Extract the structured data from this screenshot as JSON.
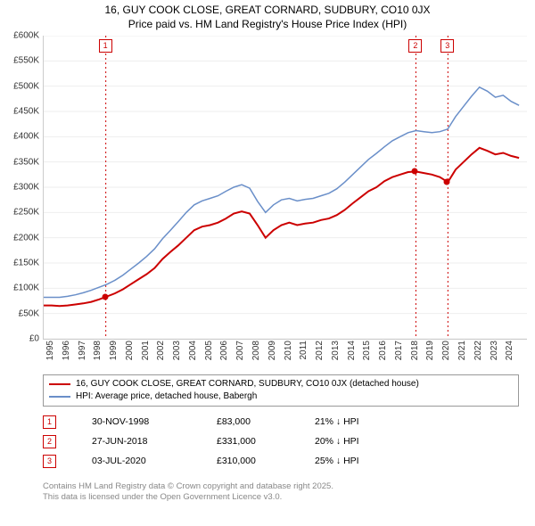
{
  "title_line1": "16, GUY COOK CLOSE, GREAT CORNARD, SUDBURY, CO10 0JX",
  "title_line2": "Price paid vs. HM Land Registry's House Price Index (HPI)",
  "chart": {
    "type": "line",
    "background_color": "#ffffff",
    "grid_color": "#eeeeee",
    "axis_color": "#cccccc",
    "xlim": [
      1995,
      2025.5
    ],
    "ylim": [
      0,
      600000
    ],
    "yticks": [
      0,
      50000,
      100000,
      150000,
      200000,
      250000,
      300000,
      350000,
      400000,
      450000,
      500000,
      550000,
      600000
    ],
    "ytick_labels": [
      "£0",
      "£50K",
      "£100K",
      "£150K",
      "£200K",
      "£250K",
      "£300K",
      "£350K",
      "£400K",
      "£450K",
      "£500K",
      "£550K",
      "£600K"
    ],
    "xticks": [
      1995,
      1996,
      1997,
      1998,
      1999,
      2000,
      2001,
      2002,
      2003,
      2004,
      2005,
      2006,
      2007,
      2008,
      2009,
      2010,
      2011,
      2012,
      2013,
      2014,
      2015,
      2016,
      2017,
      2018,
      2019,
      2020,
      2021,
      2022,
      2023,
      2024
    ],
    "xtick_labels": [
      "1995",
      "1996",
      "1997",
      "1998",
      "1999",
      "2000",
      "2001",
      "2002",
      "2003",
      "2004",
      "2005",
      "2006",
      "2007",
      "2008",
      "2009",
      "2010",
      "2011",
      "2012",
      "2013",
      "2014",
      "2015",
      "2016",
      "2017",
      "2018",
      "2019",
      "2020",
      "2021",
      "2022",
      "2023",
      "2024"
    ],
    "label_fontsize": 10,
    "series": [
      {
        "name": "property",
        "color": "#cc0000",
        "line_width": 2,
        "data": [
          [
            1995,
            66000
          ],
          [
            1995.5,
            66000
          ],
          [
            1996,
            65000
          ],
          [
            1996.5,
            66000
          ],
          [
            1997,
            68000
          ],
          [
            1997.5,
            70000
          ],
          [
            1998,
            73000
          ],
          [
            1998.5,
            78000
          ],
          [
            1998.92,
            83000
          ],
          [
            1999.5,
            90000
          ],
          [
            2000,
            98000
          ],
          [
            2000.5,
            108000
          ],
          [
            2001,
            118000
          ],
          [
            2001.5,
            128000
          ],
          [
            2002,
            140000
          ],
          [
            2002.5,
            158000
          ],
          [
            2003,
            172000
          ],
          [
            2003.5,
            185000
          ],
          [
            2004,
            200000
          ],
          [
            2004.5,
            215000
          ],
          [
            2005,
            222000
          ],
          [
            2005.5,
            225000
          ],
          [
            2006,
            230000
          ],
          [
            2006.5,
            238000
          ],
          [
            2007,
            248000
          ],
          [
            2007.5,
            252000
          ],
          [
            2008,
            248000
          ],
          [
            2008.5,
            225000
          ],
          [
            2009,
            200000
          ],
          [
            2009.5,
            215000
          ],
          [
            2010,
            225000
          ],
          [
            2010.5,
            230000
          ],
          [
            2011,
            225000
          ],
          [
            2011.5,
            228000
          ],
          [
            2012,
            230000
          ],
          [
            2012.5,
            235000
          ],
          [
            2013,
            238000
          ],
          [
            2013.5,
            245000
          ],
          [
            2014,
            255000
          ],
          [
            2014.5,
            268000
          ],
          [
            2015,
            280000
          ],
          [
            2015.5,
            292000
          ],
          [
            2016,
            300000
          ],
          [
            2016.5,
            312000
          ],
          [
            2017,
            320000
          ],
          [
            2017.5,
            325000
          ],
          [
            2018,
            330000
          ],
          [
            2018.49,
            331000
          ],
          [
            2019,
            328000
          ],
          [
            2019.5,
            325000
          ],
          [
            2020,
            320000
          ],
          [
            2020.51,
            310000
          ],
          [
            2021,
            335000
          ],
          [
            2021.5,
            350000
          ],
          [
            2022,
            365000
          ],
          [
            2022.5,
            378000
          ],
          [
            2023,
            372000
          ],
          [
            2023.5,
            365000
          ],
          [
            2024,
            368000
          ],
          [
            2024.5,
            362000
          ],
          [
            2025,
            358000
          ]
        ]
      },
      {
        "name": "hpi",
        "color": "#6a8fc9",
        "line_width": 1.5,
        "data": [
          [
            1995,
            82000
          ],
          [
            1995.5,
            82000
          ],
          [
            1996,
            82000
          ],
          [
            1996.5,
            84000
          ],
          [
            1997,
            87000
          ],
          [
            1997.5,
            91000
          ],
          [
            1998,
            96000
          ],
          [
            1998.5,
            102000
          ],
          [
            1999,
            108000
          ],
          [
            1999.5,
            116000
          ],
          [
            2000,
            126000
          ],
          [
            2000.5,
            138000
          ],
          [
            2001,
            150000
          ],
          [
            2001.5,
            163000
          ],
          [
            2002,
            178000
          ],
          [
            2002.5,
            198000
          ],
          [
            2003,
            215000
          ],
          [
            2003.5,
            232000
          ],
          [
            2004,
            250000
          ],
          [
            2004.5,
            265000
          ],
          [
            2005,
            273000
          ],
          [
            2005.5,
            278000
          ],
          [
            2006,
            283000
          ],
          [
            2006.5,
            292000
          ],
          [
            2007,
            300000
          ],
          [
            2007.5,
            305000
          ],
          [
            2008,
            298000
          ],
          [
            2008.5,
            272000
          ],
          [
            2009,
            250000
          ],
          [
            2009.5,
            265000
          ],
          [
            2010,
            275000
          ],
          [
            2010.5,
            278000
          ],
          [
            2011,
            273000
          ],
          [
            2011.5,
            276000
          ],
          [
            2012,
            278000
          ],
          [
            2012.5,
            283000
          ],
          [
            2013,
            288000
          ],
          [
            2013.5,
            297000
          ],
          [
            2014,
            310000
          ],
          [
            2014.5,
            325000
          ],
          [
            2015,
            340000
          ],
          [
            2015.5,
            355000
          ],
          [
            2016,
            367000
          ],
          [
            2016.5,
            380000
          ],
          [
            2017,
            392000
          ],
          [
            2017.5,
            400000
          ],
          [
            2018,
            408000
          ],
          [
            2018.5,
            412000
          ],
          [
            2019,
            410000
          ],
          [
            2019.5,
            408000
          ],
          [
            2020,
            410000
          ],
          [
            2020.5,
            415000
          ],
          [
            2021,
            440000
          ],
          [
            2021.5,
            460000
          ],
          [
            2022,
            480000
          ],
          [
            2022.5,
            498000
          ],
          [
            2023,
            490000
          ],
          [
            2023.5,
            478000
          ],
          [
            2024,
            482000
          ],
          [
            2024.5,
            470000
          ],
          [
            2025,
            462000
          ]
        ]
      }
    ],
    "markers": [
      {
        "x": 1998.92,
        "y": 83000,
        "color": "#cc0000"
      },
      {
        "x": 2018.49,
        "y": 331000,
        "color": "#cc0000"
      },
      {
        "x": 2020.51,
        "y": 310000,
        "color": "#cc0000"
      }
    ],
    "event_lines": [
      {
        "num": "1",
        "x": 1998.92,
        "line_color": "#cc0000"
      },
      {
        "num": "2",
        "x": 2018.49,
        "line_color": "#cc0000"
      },
      {
        "num": "3",
        "x": 2020.51,
        "line_color": "#cc0000"
      }
    ]
  },
  "legend": {
    "items": [
      {
        "color": "#cc0000",
        "label": "16, GUY COOK CLOSE, GREAT CORNARD, SUDBURY, CO10 0JX (detached house)"
      },
      {
        "color": "#6a8fc9",
        "label": "HPI: Average price, detached house, Babergh"
      }
    ]
  },
  "events": [
    {
      "num": "1",
      "date": "30-NOV-1998",
      "price": "£83,000",
      "diff": "21% ↓ HPI"
    },
    {
      "num": "2",
      "date": "27-JUN-2018",
      "price": "£331,000",
      "diff": "20% ↓ HPI"
    },
    {
      "num": "3",
      "date": "03-JUL-2020",
      "price": "£310,000",
      "diff": "25% ↓ HPI"
    }
  ],
  "footer_line1": "Contains HM Land Registry data © Crown copyright and database right 2025.",
  "footer_line2": "This data is licensed under the Open Government Licence v3.0."
}
